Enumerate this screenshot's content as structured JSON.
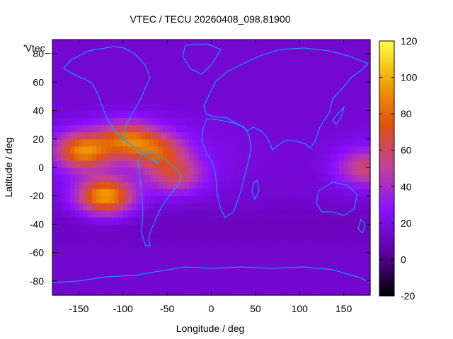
{
  "chart_data": {
    "type": "heatmap",
    "title": "VTEC / TECU 20260408_098.81900",
    "xlabel": "Longitude / deg",
    "ylabel": "Latitude / deg",
    "key_label": "'Vtec_",
    "xlim": [
      -180,
      180
    ],
    "ylim": [
      -90,
      90
    ],
    "xticks": [
      -150,
      -100,
      -50,
      0,
      50,
      100,
      150
    ],
    "yticks": [
      -80,
      -60,
      -40,
      -20,
      0,
      20,
      40,
      60,
      80
    ],
    "colorbar": {
      "range": [
        -20,
        120
      ],
      "ticks": [
        -20,
        0,
        20,
        40,
        60,
        80,
        100,
        120
      ],
      "palette": "gnuplot-pm3d",
      "palette_stops": [
        "#000000",
        "#5b00a0",
        "#8a10ff",
        "#c040a0",
        "#e05010",
        "#f0a000",
        "#ffff40"
      ]
    },
    "grid": false,
    "background_vtec": 15,
    "hotspots": [
      {
        "lon": -145,
        "lat": 12,
        "vtec": 85
      },
      {
        "lon": -120,
        "lat": -20,
        "vtec": 95
      },
      {
        "lon": -95,
        "lat": 20,
        "vtec": 70
      },
      {
        "lon": -60,
        "lat": 12,
        "vtec": 60
      },
      {
        "lon": -40,
        "lat": -5,
        "vtec": 55
      },
      {
        "lon": 175,
        "lat": 0,
        "vtec": 55
      }
    ]
  }
}
